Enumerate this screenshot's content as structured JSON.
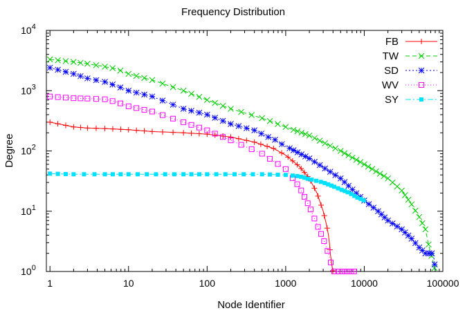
{
  "chart_data": {
    "type": "line",
    "title": "Frequency Distribution",
    "xlabel": "Node Identifier",
    "ylabel": "Degree",
    "xscale": "log",
    "yscale": "log",
    "xlim": [
      0.9,
      100000
    ],
    "ylim": [
      1,
      10000
    ],
    "xticks": [
      {
        "value": 1,
        "label": "1"
      },
      {
        "value": 10,
        "label": "10"
      },
      {
        "value": 100,
        "label": "100"
      },
      {
        "value": 1000,
        "label": "1000"
      },
      {
        "value": 10000,
        "label": "10000"
      },
      {
        "value": 100000,
        "label": "100000"
      }
    ],
    "yticks": [
      {
        "value": 1,
        "base": "10",
        "exp": "0"
      },
      {
        "value": 10,
        "base": "10",
        "exp": "1"
      },
      {
        "value": 100,
        "base": "10",
        "exp": "2"
      },
      {
        "value": 1000,
        "base": "10",
        "exp": "3"
      },
      {
        "value": 10000,
        "base": "10",
        "exp": "4"
      }
    ],
    "grid": false,
    "legend_position": "top-right",
    "series": [
      {
        "name": "FB",
        "color": "#ff0000",
        "marker": "plus",
        "dash": "solid",
        "x": [
          1,
          2,
          3,
          5,
          10,
          20,
          50,
          100,
          200,
          400,
          700,
          1000,
          1500,
          2000,
          2500,
          3000,
          3300,
          3500,
          3600,
          3700,
          3800,
          3900,
          4000
        ],
        "y": [
          300,
          250,
          240,
          235,
          225,
          210,
          200,
          190,
          170,
          140,
          110,
          85,
          55,
          35,
          20,
          10,
          6,
          4,
          3,
          2,
          1.5,
          1.2,
          1
        ]
      },
      {
        "name": "TW",
        "color": "#00cc00",
        "marker": "cross",
        "dash": "6,4",
        "x": [
          1,
          2,
          3,
          5,
          7,
          10,
          20,
          50,
          100,
          200,
          500,
          1000,
          2000,
          5000,
          10000,
          20000,
          30000,
          40000,
          50000,
          60000,
          65000,
          70000,
          75000,
          80000
        ],
        "y": [
          3300,
          3000,
          2800,
          2500,
          2300,
          1900,
          1500,
          1000,
          700,
          500,
          350,
          250,
          180,
          100,
          60,
          35,
          22,
          13,
          8,
          5,
          3,
          2,
          1.5,
          1
        ]
      },
      {
        "name": "SD",
        "color": "#0000ff",
        "marker": "star",
        "dash": "2,3",
        "x": [
          1,
          2,
          3,
          5,
          7,
          10,
          20,
          50,
          100,
          200,
          400,
          600,
          700,
          800,
          1000,
          2000,
          5000,
          10000,
          15000,
          20000,
          30000,
          40000,
          50000,
          60000,
          70000,
          75000,
          78000,
          80000
        ],
        "y": [
          2400,
          1900,
          1600,
          1400,
          1200,
          1000,
          800,
          500,
          400,
          280,
          220,
          170,
          160,
          140,
          120,
          75,
          35,
          15,
          10,
          7,
          5,
          3.5,
          2.5,
          2,
          2,
          2,
          1.5,
          1
        ]
      },
      {
        "name": "WV",
        "color": "#ff00ff",
        "marker": "square",
        "dash": "1,3",
        "x": [
          1,
          2,
          3,
          5,
          7,
          10,
          20,
          50,
          100,
          200,
          500,
          1000,
          1500,
          2000,
          2500,
          3000,
          3500,
          4000,
          5000,
          6000,
          7000,
          7500
        ],
        "y": [
          800,
          750,
          740,
          720,
          650,
          550,
          450,
          300,
          220,
          150,
          90,
          50,
          25,
          12,
          6,
          3.5,
          2,
          1,
          1,
          1,
          1,
          1
        ]
      },
      {
        "name": "SY",
        "color": "#00e0ff",
        "marker": "filled-square",
        "dash": "8,3,2,3",
        "x": [
          1,
          2,
          5,
          10,
          50,
          100,
          500,
          1000,
          1500,
          2000,
          3000,
          4000,
          5000,
          6000,
          7000,
          8000,
          9000,
          10000,
          10500
        ],
        "y": [
          42,
          41,
          41,
          41,
          41,
          41,
          41,
          40,
          38,
          34,
          30,
          26,
          23,
          21,
          19,
          17,
          16,
          15,
          14
        ]
      }
    ]
  }
}
